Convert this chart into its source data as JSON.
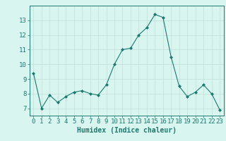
{
  "x": [
    0,
    1,
    2,
    3,
    4,
    5,
    6,
    7,
    8,
    9,
    10,
    11,
    12,
    13,
    14,
    15,
    16,
    17,
    18,
    19,
    20,
    21,
    22,
    23
  ],
  "y": [
    9.4,
    7.0,
    7.9,
    7.4,
    7.8,
    8.1,
    8.2,
    8.0,
    7.9,
    8.6,
    10.0,
    11.0,
    11.1,
    12.0,
    12.5,
    13.4,
    13.2,
    10.5,
    8.5,
    7.8,
    8.1,
    8.6,
    8.0,
    6.9
  ],
  "xlabel": "Humidex (Indice chaleur)",
  "ylim": [
    6.5,
    14.0
  ],
  "xlim": [
    -0.5,
    23.5
  ],
  "yticks": [
    7,
    8,
    9,
    10,
    11,
    12,
    13
  ],
  "xticks": [
    0,
    1,
    2,
    3,
    4,
    5,
    6,
    7,
    8,
    9,
    10,
    11,
    12,
    13,
    14,
    15,
    16,
    17,
    18,
    19,
    20,
    21,
    22,
    23
  ],
  "line_color": "#1a7a6e",
  "marker": "D",
  "marker_size": 2.0,
  "bg_color": "#d9f5f0",
  "grid_color": "#c0ddd8",
  "tick_color": "#1a7a6e",
  "label_color": "#1a7a6e",
  "xlabel_fontsize": 7,
  "tick_fontsize": 6.5,
  "spine_color": "#1a7a6e"
}
